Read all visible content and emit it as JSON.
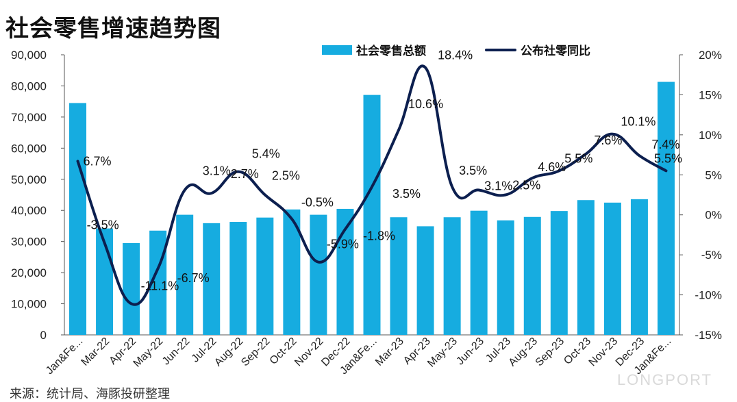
{
  "title": "社会零售增速趋势图",
  "source": "来源：统计局、海豚投研整理",
  "logo": "LONGPORT",
  "colors": {
    "bar": "#16ace0",
    "line": "#0c1f4f",
    "axis": "#555555",
    "text": "#111111"
  },
  "chart_data": {
    "type": "bar",
    "categories": [
      "Jan&Feb-22",
      "Mar-22",
      "Apr-22",
      "May-22",
      "Jun-22",
      "Jul-22",
      "Aug-22",
      "Sep-22",
      "Oct-22",
      "Nov-22",
      "Dec-22",
      "Jan&Feb-23",
      "Mar-23",
      "Apr-23",
      "May-23",
      "Jun-23",
      "Jul-23",
      "Aug-23",
      "Sep-23",
      "Oct-23",
      "Nov-23",
      "Dec-23",
      "Jan&Feb-24"
    ],
    "category_labels": [
      "Jan&Fe...",
      "Mar-22",
      "Apr-22",
      "May-22",
      "Jun-22",
      "Jul-22",
      "Aug-22",
      "Sep-22",
      "Oct-22",
      "Nov-22",
      "Dec-22",
      "Jan&Fe...",
      "Mar-23",
      "Apr-23",
      "May-23",
      "Jun-23",
      "Jul-23",
      "Aug-23",
      "Sep-23",
      "Oct-23",
      "Nov-23",
      "Dec-23",
      "Jan&Fe..."
    ],
    "series": [
      {
        "name": "社会零售总额",
        "type": "bar",
        "axis": "left",
        "values": [
          74500,
          34200,
          29500,
          33500,
          38600,
          35900,
          36300,
          37700,
          40300,
          38600,
          40500,
          77100,
          37800,
          34900,
          37800,
          39900,
          36800,
          37900,
          39800,
          43300,
          42500,
          43600,
          81300
        ]
      },
      {
        "name": "公布社零同比",
        "type": "line",
        "axis": "right",
        "values": [
          6.7,
          -3.5,
          -11.1,
          -6.7,
          3.1,
          2.7,
          5.4,
          2.5,
          -0.5,
          -5.9,
          -1.8,
          3.5,
          10.6,
          18.4,
          3.5,
          3.1,
          2.5,
          4.6,
          5.5,
          7.6,
          10.1,
          7.4,
          5.5
        ],
        "labels": [
          "6.7%",
          "-3.5%",
          "-11.1%",
          "-6.7%",
          "3.1%",
          "2.7%",
          "5.4%",
          "2.5%",
          "-0.5%",
          "-5.9%",
          "-1.8%",
          "3.5%",
          "10.6%",
          "18.4%",
          "3.5%",
          "3.1%",
          "2.5%",
          "4.6%",
          "5.5%",
          "7.6%",
          "10.1%",
          "7.4%",
          "5.5%"
        ]
      }
    ],
    "left_axis": {
      "min": 0,
      "max": 90000,
      "ticks": [
        "0",
        "10,000",
        "20,000",
        "30,000",
        "40,000",
        "50,000",
        "60,000",
        "70,000",
        "80,000",
        "90,000"
      ]
    },
    "right_axis": {
      "min": -15,
      "max": 20,
      "ticks": [
        "-15%",
        "-10%",
        "-5%",
        "0%",
        "5%",
        "10%",
        "15%",
        "20%"
      ]
    },
    "grid": false,
    "legend_position": "top-center"
  }
}
